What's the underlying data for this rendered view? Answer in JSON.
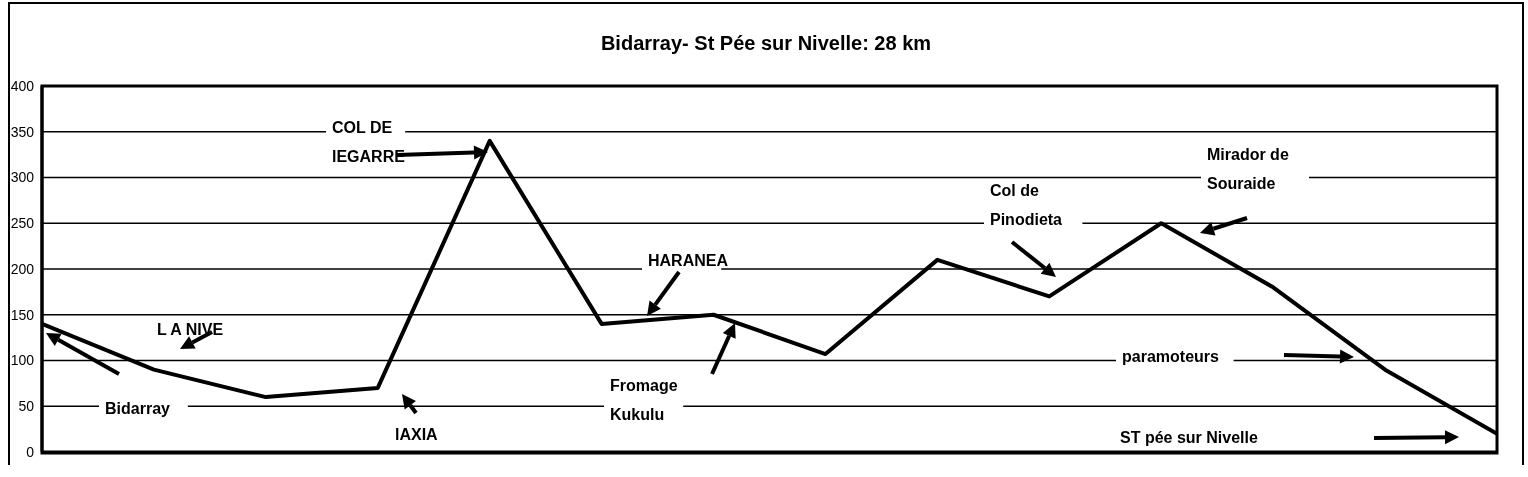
{
  "chart_data": {
    "type": "line",
    "title": "Bidarray- St Pée sur Nivelle: 28 km",
    "categories": [
      null,
      null,
      null,
      null,
      null,
      null,
      null,
      null,
      null,
      null,
      null,
      null,
      null,
      null
    ],
    "series": [
      {
        "color": "#000000",
        "values": [
          140,
          90,
          60,
          70,
          340,
          140,
          150,
          107,
          210,
          170,
          250,
          180,
          90,
          20
        ]
      }
    ],
    "ylim": [
      0,
      400
    ],
    "yticks": [
      0,
      50,
      100,
      150,
      200,
      250,
      300,
      350,
      400
    ],
    "grid": "y",
    "tick_labels": "y",
    "marker": "none",
    "line_style": "solid",
    "legend": false,
    "annotations": [
      "L A NIVE",
      "Bidarray",
      "COL DE\nlEGARRE",
      "lAXIA",
      "HARANEA",
      "Fromage\nKukulu",
      "Col de\nPinodieta",
      "Mirador de\nSouraide",
      "paramoteurs",
      "ST pée sur Nivelle"
    ]
  }
}
